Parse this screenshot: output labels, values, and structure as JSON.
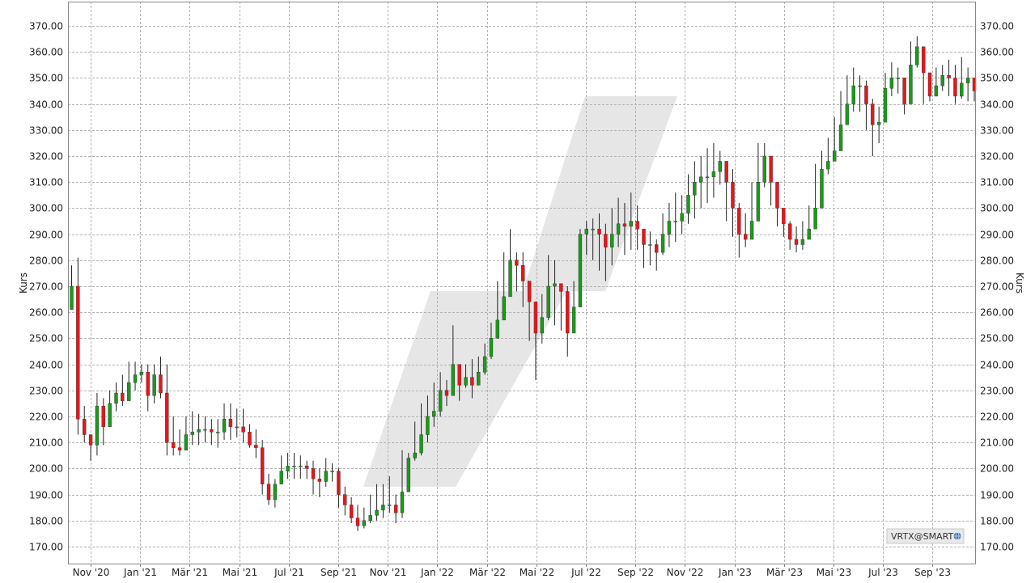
{
  "chart_data": {
    "type": "candlestick",
    "title": "",
    "ylabel_left": "Kurs",
    "ylabel_right": "Kurs",
    "ylim": [
      165,
      375
    ],
    "y_ticks": [
      "370.00",
      "360.00",
      "350.00",
      "340.00",
      "330.00",
      "320.00",
      "310.00",
      "300.00",
      "290.00",
      "280.00",
      "270.00",
      "260.00",
      "250.00",
      "240.00",
      "230.00",
      "220.00",
      "210.00",
      "200.00",
      "190.00",
      "180.00",
      "170.00"
    ],
    "x_ticks": [
      "Nov '20",
      "Jan '21",
      "Mär '21",
      "Mai '21",
      "Jul '21",
      "Sep '21",
      "Nov '21",
      "Jan '22",
      "Mär '22",
      "Mai '22",
      "Jul '22",
      "Sep '22",
      "Nov '22",
      "Jan '23",
      "Mär '23",
      "Mai '23",
      "Jul '23",
      "Sep '23"
    ],
    "grid": true,
    "legend": "bottom-right",
    "symbol_badge": "VRTX@SMART",
    "colors": {
      "up": "#1a9a1a",
      "down": "#e8151b",
      "grid": "#b3b3b3",
      "watermark": "#e6e6e6"
    },
    "weekly_close": [
      270,
      219,
      213,
      209,
      224,
      216,
      225,
      229,
      226,
      233,
      236,
      237,
      228,
      236,
      229,
      210,
      208,
      207,
      213,
      214,
      215,
      215,
      214,
      214,
      219,
      216,
      216,
      214,
      209,
      208,
      194,
      188,
      194,
      199,
      201,
      201,
      201,
      200,
      196,
      195,
      199,
      199,
      190,
      186,
      181,
      178,
      180,
      182,
      184,
      186,
      186,
      183,
      191,
      204,
      206,
      213,
      220,
      222,
      230,
      228,
      240,
      232,
      235,
      232,
      237,
      243,
      250,
      257,
      266,
      280,
      278,
      272,
      264,
      252,
      258,
      270,
      271,
      268,
      252,
      262,
      290,
      292,
      292,
      290,
      285,
      290,
      294,
      293,
      295,
      292,
      286,
      286,
      283,
      290,
      295,
      295,
      298,
      305,
      310,
      312,
      312,
      314,
      318,
      310,
      300,
      290,
      288,
      295,
      310,
      320,
      310,
      300,
      294,
      288,
      286,
      288,
      292,
      300,
      315,
      318,
      322,
      332,
      340,
      347,
      347,
      340,
      332,
      333,
      346,
      350,
      350,
      340,
      355,
      362,
      352,
      343,
      347,
      351,
      350,
      343,
      348,
      350,
      345
    ],
    "weekly_range": [
      [
        261,
        278
      ],
      [
        213,
        281
      ],
      [
        210,
        224
      ],
      [
        203,
        212
      ],
      [
        205,
        229
      ],
      [
        209,
        227
      ],
      [
        220,
        230
      ],
      [
        222,
        233
      ],
      [
        224,
        236
      ],
      [
        228,
        241
      ],
      [
        230,
        241
      ],
      [
        233,
        240
      ],
      [
        222,
        240
      ],
      [
        225,
        240
      ],
      [
        227,
        243
      ],
      [
        205,
        240
      ],
      [
        205,
        220
      ],
      [
        205,
        215
      ],
      [
        207,
        220
      ],
      [
        209,
        222
      ],
      [
        209,
        221
      ],
      [
        210,
        220
      ],
      [
        209,
        219
      ],
      [
        208,
        219
      ],
      [
        211,
        225
      ],
      [
        211,
        225
      ],
      [
        212,
        223
      ],
      [
        210,
        223
      ],
      [
        208,
        217
      ],
      [
        204,
        215
      ],
      [
        190,
        211
      ],
      [
        186,
        198
      ],
      [
        185,
        196
      ],
      [
        195,
        205
      ],
      [
        196,
        206
      ],
      [
        196,
        206
      ],
      [
        196,
        205
      ],
      [
        196,
        203
      ],
      [
        190,
        203
      ],
      [
        189,
        200
      ],
      [
        193,
        204
      ],
      [
        195,
        202
      ],
      [
        185,
        200
      ],
      [
        182,
        193
      ],
      [
        179,
        189
      ],
      [
        176,
        186
      ],
      [
        177,
        185
      ],
      [
        179,
        190
      ],
      [
        180,
        194
      ],
      [
        181,
        194
      ],
      [
        183,
        197
      ],
      [
        179,
        190
      ],
      [
        181,
        207
      ],
      [
        195,
        206
      ],
      [
        203,
        218
      ],
      [
        205,
        225
      ],
      [
        210,
        228
      ],
      [
        216,
        233
      ],
      [
        220,
        237
      ],
      [
        224,
        234
      ],
      [
        230,
        255
      ],
      [
        226,
        240
      ],
      [
        231,
        240
      ],
      [
        227,
        242
      ],
      [
        232,
        243
      ],
      [
        236,
        248
      ],
      [
        242,
        256
      ],
      [
        250,
        272
      ],
      [
        263,
        283
      ],
      [
        270,
        292
      ],
      [
        268,
        283
      ],
      [
        262,
        283
      ],
      [
        249,
        270
      ],
      [
        234,
        263
      ],
      [
        248,
        267
      ],
      [
        257,
        282
      ],
      [
        255,
        280
      ],
      [
        253,
        270
      ],
      [
        243,
        270
      ],
      [
        255,
        272
      ],
      [
        265,
        292
      ],
      [
        282,
        295
      ],
      [
        280,
        296
      ],
      [
        276,
        298
      ],
      [
        272,
        294
      ],
      [
        278,
        300
      ],
      [
        285,
        304
      ],
      [
        282,
        302
      ],
      [
        284,
        306
      ],
      [
        284,
        301
      ],
      [
        277,
        290
      ],
      [
        278,
        291
      ],
      [
        276,
        288
      ],
      [
        282,
        298
      ],
      [
        285,
        302
      ],
      [
        287,
        306
      ],
      [
        290,
        305
      ],
      [
        294,
        313
      ],
      [
        296,
        318
      ],
      [
        300,
        320
      ],
      [
        302,
        323
      ],
      [
        304,
        325
      ],
      [
        309,
        322
      ],
      [
        295,
        318
      ],
      [
        289,
        315
      ],
      [
        281,
        302
      ],
      [
        285,
        298
      ],
      [
        291,
        310
      ],
      [
        300,
        325
      ],
      [
        308,
        325
      ],
      [
        301,
        315
      ],
      [
        293,
        305
      ],
      [
        289,
        299
      ],
      [
        284,
        295
      ],
      [
        283,
        293
      ],
      [
        284,
        295
      ],
      [
        288,
        301
      ],
      [
        295,
        317
      ],
      [
        310,
        322
      ],
      [
        313,
        327
      ],
      [
        318,
        335
      ],
      [
        323,
        345
      ],
      [
        332,
        351
      ],
      [
        337,
        354
      ],
      [
        337,
        351
      ],
      [
        330,
        349
      ],
      [
        320,
        342
      ],
      [
        325,
        339
      ],
      [
        336,
        352
      ],
      [
        343,
        356
      ],
      [
        344,
        354
      ],
      [
        336,
        350
      ],
      [
        346,
        364
      ],
      [
        354,
        366
      ],
      [
        340,
        358
      ],
      [
        341,
        351
      ],
      [
        343,
        354
      ],
      [
        345,
        355
      ],
      [
        343,
        357
      ],
      [
        340,
        355
      ],
      [
        342,
        358
      ],
      [
        341,
        354
      ],
      [
        341,
        350
      ]
    ]
  }
}
